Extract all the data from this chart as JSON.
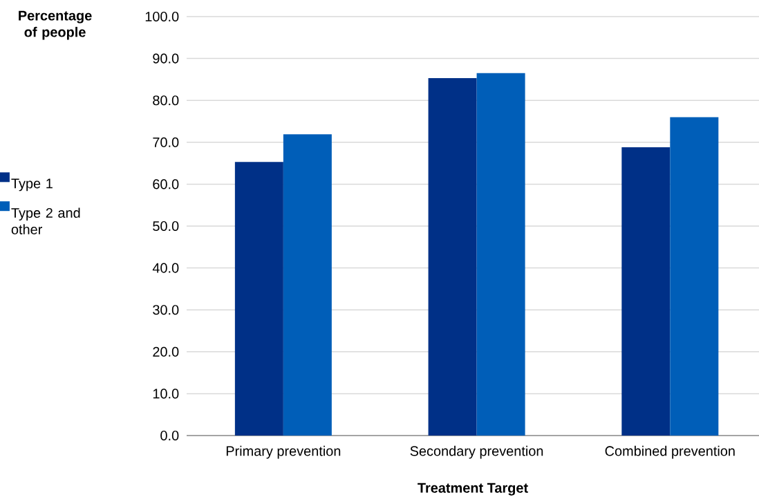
{
  "chart_data": {
    "type": "bar",
    "xlabel": "Treatment Target",
    "ylabel": "Percentage of people",
    "categories": [
      "Primary prevention",
      "Secondary prevention",
      "Combined prevention"
    ],
    "series": [
      {
        "name": "Type 1",
        "color": "#003087",
        "values": [
          65.3,
          85.3,
          68.8
        ]
      },
      {
        "name": "Type 2 and other",
        "color": "#005eb8",
        "values": [
          71.9,
          86.5,
          76.0
        ]
      }
    ],
    "ylim": [
      0,
      100
    ],
    "yticks": [
      {
        "value": 0,
        "label": "0.0"
      },
      {
        "value": 10,
        "label": "10.0"
      },
      {
        "value": 20,
        "label": "20.0"
      },
      {
        "value": 30,
        "label": "30.0"
      },
      {
        "value": 40,
        "label": "40.0"
      },
      {
        "value": 50,
        "label": "50.0"
      },
      {
        "value": 60,
        "label": "60.0"
      },
      {
        "value": 70,
        "label": "70.0"
      },
      {
        "value": 80,
        "label": "80.0"
      },
      {
        "value": 90,
        "label": "90.0"
      },
      {
        "value": 100,
        "label": "100.0"
      }
    ],
    "grid": "y",
    "legend": "left"
  }
}
